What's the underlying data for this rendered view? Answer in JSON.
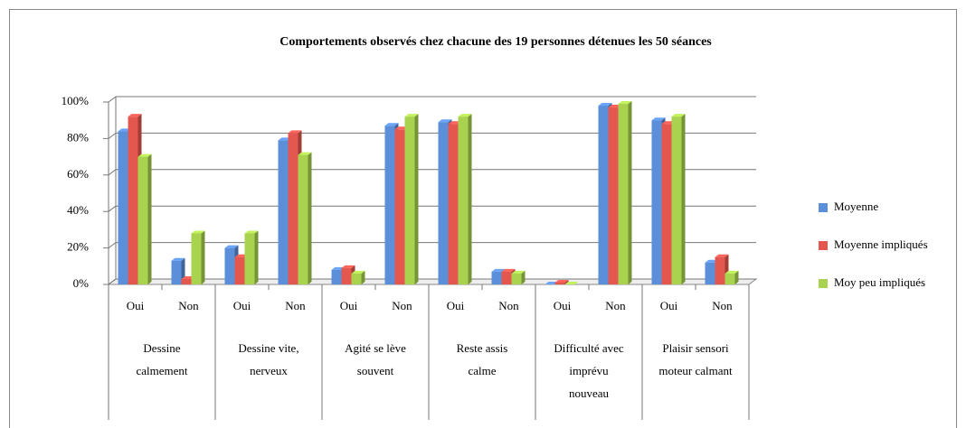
{
  "chart_data": {
    "type": "bar",
    "title": "Comportements observés chez chacune des 19 personnes détenues les 50 séances",
    "categories": [
      "Oui",
      "Non",
      "Oui",
      "Non",
      "Oui",
      "Non",
      "Oui",
      "Non",
      "Oui",
      "Non",
      "Oui",
      "Non"
    ],
    "groups": [
      [
        "Dessine",
        "calmement"
      ],
      [
        "Dessine vite,",
        "nerveux"
      ],
      [
        "Agité se lève",
        "souvent"
      ],
      [
        "Reste assis",
        "calme"
      ],
      [
        "Difficulté avec",
        "imprévu",
        "nouveau"
      ],
      [
        "Plaisir sensori",
        "moteur calmant"
      ]
    ],
    "series": [
      {
        "name": "Moyenne",
        "color": "#5b8fd9",
        "values": [
          84,
          13,
          20,
          79,
          8,
          87,
          89,
          7,
          0,
          98,
          90,
          12
        ]
      },
      {
        "name": "Moyenne impliqués",
        "color": "#e4574f",
        "values": [
          92,
          3,
          15,
          83,
          9,
          85,
          88,
          7,
          1,
          97,
          88,
          15
        ]
      },
      {
        "name": "Moy peu impliqués",
        "color": "#a9d34f",
        "values": [
          70,
          28,
          28,
          71,
          6,
          92,
          92,
          6,
          0,
          99,
          92,
          6
        ]
      }
    ],
    "ylim": [
      0,
      100
    ],
    "yticks": [
      {
        "value": 0,
        "label": "0%"
      },
      {
        "value": 20,
        "label": "20%"
      },
      {
        "value": 40,
        "label": "40%"
      },
      {
        "value": 60,
        "label": "60%"
      },
      {
        "value": 80,
        "label": "80%"
      },
      {
        "value": 100,
        "label": "100%"
      }
    ],
    "grid": true,
    "legend": "right"
  }
}
